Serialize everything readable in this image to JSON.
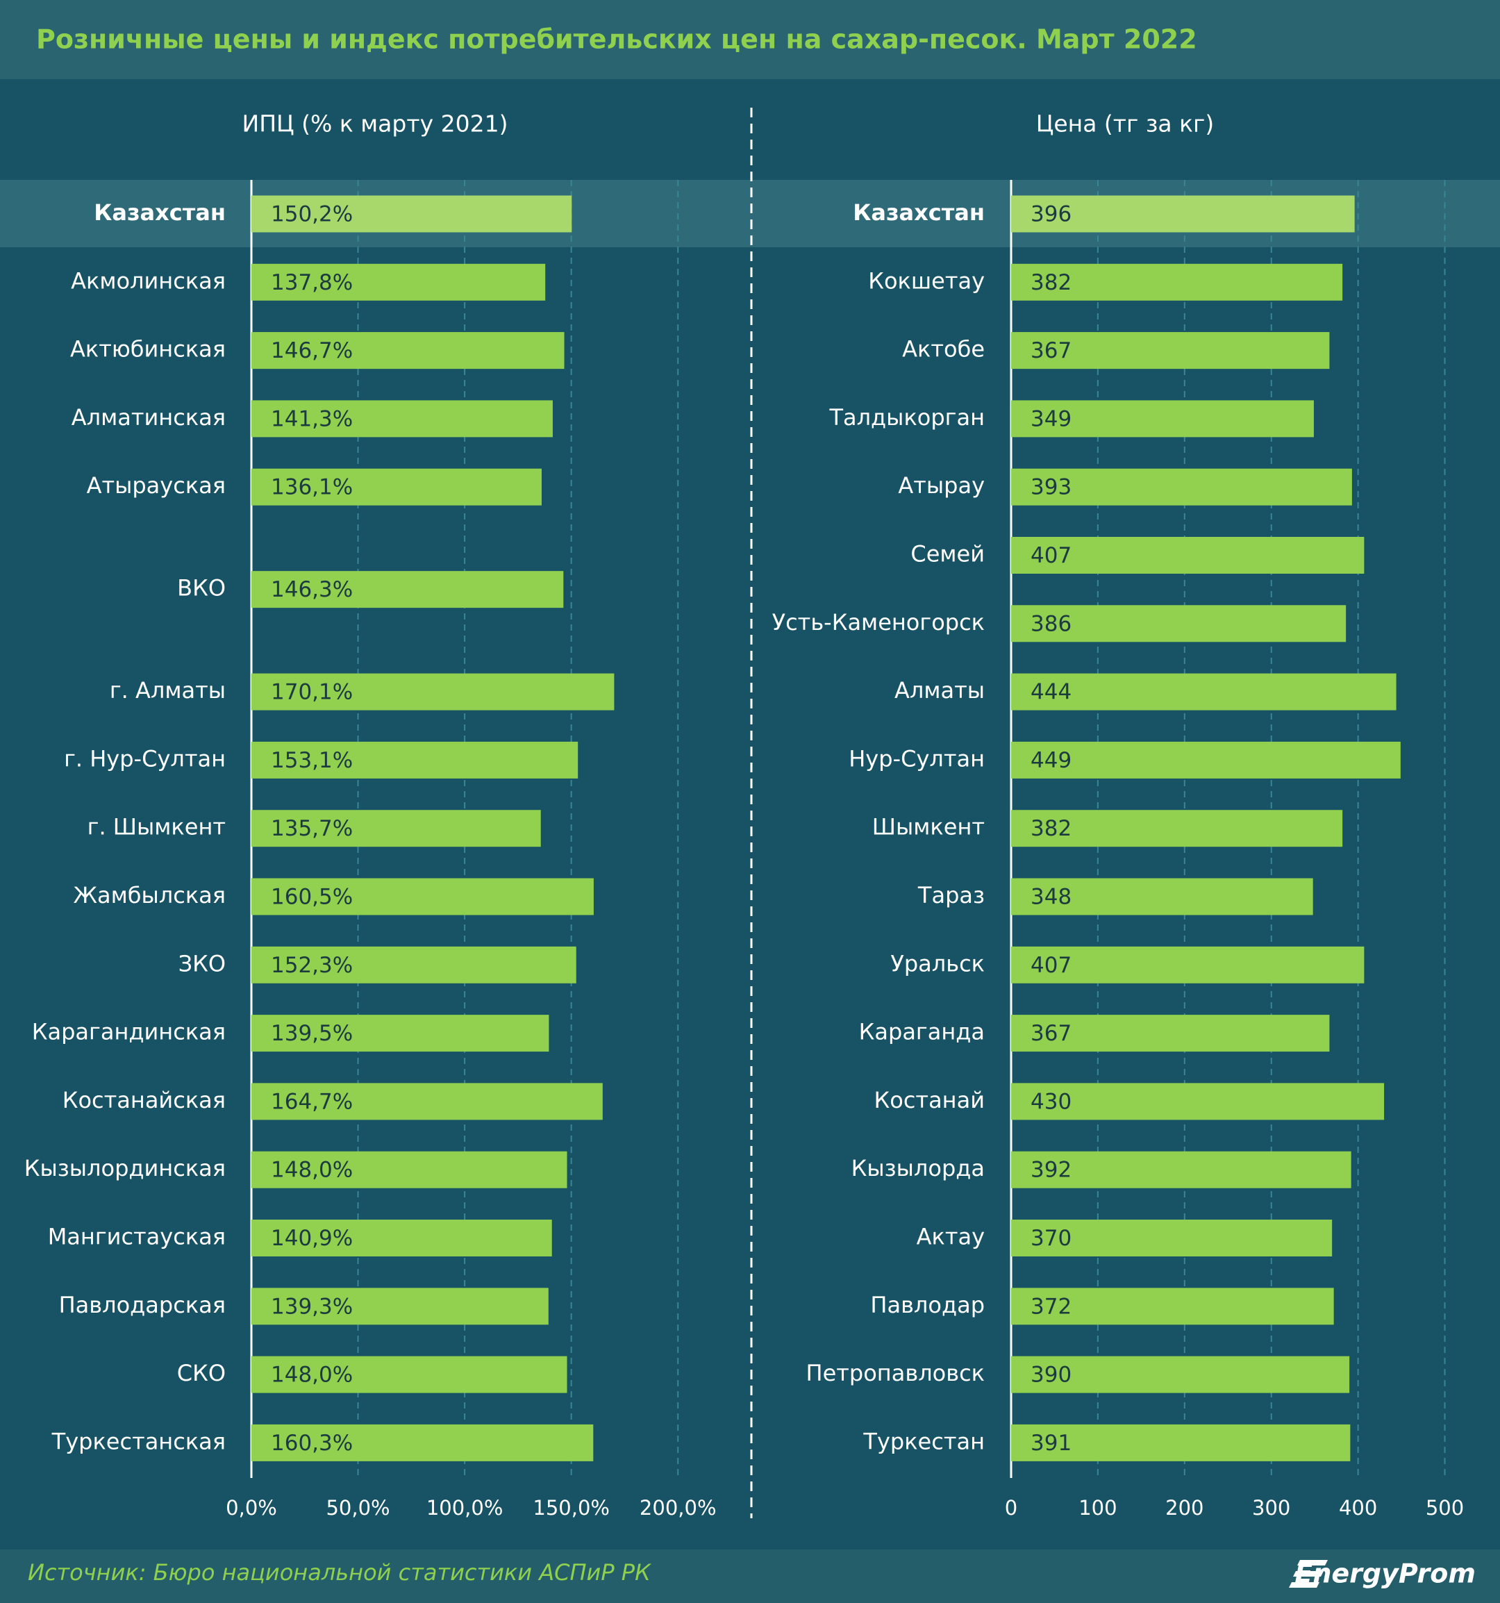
{
  "title": "Розничные цены и индекс потребительских цен на сахар-песок. Март 2022",
  "source": "Источник: Бюро национальной статистики АСПиР РК",
  "logo": "EnergyProm",
  "chart_data": [
    {
      "type": "bar",
      "orientation": "horizontal",
      "x_label": "ИПЦ (% к марту 2021)",
      "categories": [
        "Казахстан",
        "Акмолинская",
        "Актюбинская",
        "Алматинская",
        "Атырауская",
        "ВКО",
        "г. Алматы",
        "г. Нур-Султан",
        "г. Шымкент",
        "Жамбылская",
        "ЗКО",
        "Карагандинская",
        "Костанайская",
        "Кызылординская",
        "Мангистауская",
        "Павлодарская",
        "СКО",
        "Туркестанская"
      ],
      "values": [
        150.2,
        137.8,
        146.7,
        141.3,
        136.1,
        146.3,
        170.1,
        153.1,
        135.7,
        160.5,
        152.3,
        139.5,
        164.7,
        148.0,
        140.9,
        139.3,
        148.0,
        160.3
      ],
      "value_labels": [
        "150,2%",
        "137,8%",
        "146,7%",
        "141,3%",
        "136,1%",
        "146,3%",
        "170,1%",
        "153,1%",
        "135,7%",
        "160,5%",
        "152,3%",
        "139,5%",
        "164,7%",
        "148,0%",
        "140,9%",
        "139,3%",
        "148,0%",
        "160,3%"
      ],
      "color": "#92d050",
      "highlight_color": "#a8d86c",
      "highlight_index": 0,
      "xlim": [
        0,
        225
      ],
      "xticks": [
        {
          "value": 0,
          "label": "0,0%"
        },
        {
          "value": 50,
          "label": "50,0%"
        },
        {
          "value": 100,
          "label": "100,0%"
        },
        {
          "value": 150,
          "label": "150,0%"
        },
        {
          "value": 200,
          "label": "200,0%"
        }
      ],
      "grid": true
    },
    {
      "type": "bar",
      "orientation": "horizontal",
      "x_label": "Цена (тг за кг)",
      "categories": [
        "Казахстан",
        "Кокшетау",
        "Актобе",
        "Талдыкорган",
        "Атырау",
        "Семей",
        "Усть-Каменогорск",
        "Алматы",
        "Нур-Султан",
        "Шымкент",
        "Тараз",
        "Уральск",
        "Караганда",
        "Костанай",
        "Кызылорда",
        "Актау",
        "Павлодар",
        "Петропавловск",
        "Туркестан"
      ],
      "values": [
        396,
        382,
        367,
        349,
        393,
        407,
        386,
        444,
        449,
        382,
        348,
        407,
        367,
        430,
        392,
        370,
        372,
        390,
        391
      ],
      "color": "#92d050",
      "highlight_color": "#a8d86c",
      "highlight_index": 0,
      "xlim": [
        0,
        530
      ],
      "xticks": [
        0,
        100,
        200,
        300,
        400,
        500
      ],
      "grid": true
    }
  ]
}
